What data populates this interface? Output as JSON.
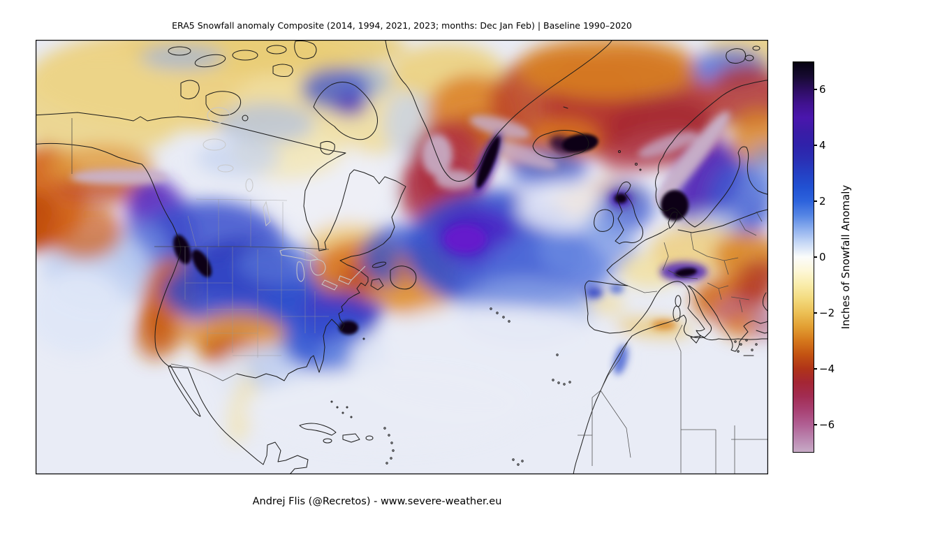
{
  "title": "ERA5 Snowfall anomaly Composite (2014, 1994, 2021, 2023; months: Dec Jan Feb) | Baseline 1990–2020",
  "credit": "Andrej Flis (@Recretos) - www.severe-weather.eu",
  "colorbar": {
    "label": "Inches of Snowfall Anomaly",
    "unit": "inches",
    "value_max": 7,
    "value_min": -7,
    "ticks": [
      6,
      4,
      2,
      0,
      -2,
      -4,
      -6
    ],
    "stops": [
      {
        "v": 7.0,
        "c": "#060210"
      },
      {
        "v": 6.5,
        "c": "#160a30"
      },
      {
        "v": 6.0,
        "c": "#2d0d62"
      },
      {
        "v": 5.5,
        "c": "#40128f"
      },
      {
        "v": 5.0,
        "c": "#4a16ad"
      },
      {
        "v": 4.5,
        "c": "#3a1ca6"
      },
      {
        "v": 4.0,
        "c": "#2f22aa"
      },
      {
        "v": 3.5,
        "c": "#2a2fb4"
      },
      {
        "v": 3.0,
        "c": "#2440c4"
      },
      {
        "v": 2.5,
        "c": "#2151d2"
      },
      {
        "v": 2.0,
        "c": "#2d63dc"
      },
      {
        "v": 1.5,
        "c": "#5585e4"
      },
      {
        "v": 1.0,
        "c": "#8fb0ee"
      },
      {
        "v": 0.5,
        "c": "#c8d9f6"
      },
      {
        "v": 0.0,
        "c": "#fbfcfb"
      },
      {
        "v": -0.5,
        "c": "#fdf7d7"
      },
      {
        "v": -1.0,
        "c": "#f9ecaa"
      },
      {
        "v": -1.5,
        "c": "#f3da7e"
      },
      {
        "v": -2.0,
        "c": "#ecc055"
      },
      {
        "v": -2.5,
        "c": "#e29f33"
      },
      {
        "v": -3.0,
        "c": "#d5781c"
      },
      {
        "v": -3.5,
        "c": "#c35312"
      },
      {
        "v": -4.0,
        "c": "#b03418"
      },
      {
        "v": -4.5,
        "c": "#a42634"
      },
      {
        "v": -5.0,
        "c": "#a22c52"
      },
      {
        "v": -5.5,
        "c": "#a84173"
      },
      {
        "v": -6.0,
        "c": "#b05e92"
      },
      {
        "v": -6.5,
        "c": "#ba84ae"
      },
      {
        "v": -7.0,
        "c": "#c7abc6"
      }
    ]
  },
  "map": {
    "type": "filled-contour-anomaly-map",
    "region": "North America, North Atlantic, Greenland, Europe, North Africa",
    "ocean_color": "#e9ecf6",
    "coastline_color": "#1a1a1a",
    "border_color": "#444444",
    "state_border_color": "#999999",
    "lake_outline_color": "#c8c8c8",
    "frame_color": "#000000"
  }
}
